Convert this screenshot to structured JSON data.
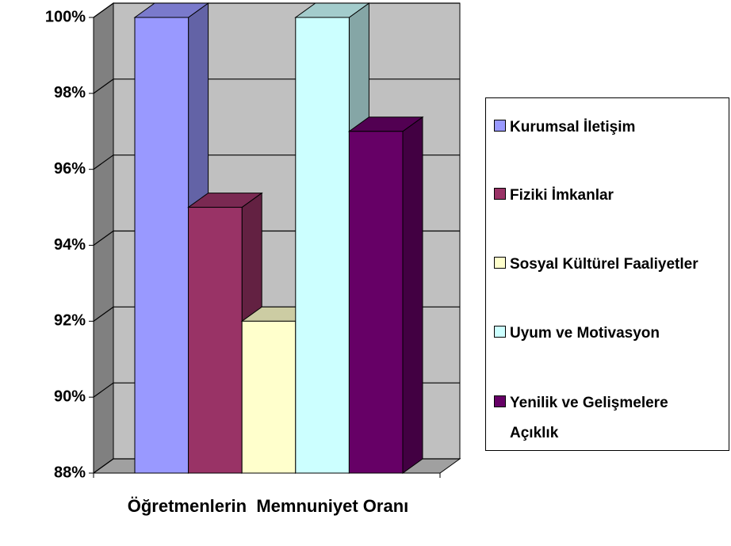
{
  "chart_data": {
    "type": "bar3d",
    "categories": [
      "Öğretmenlerin  Memnuniyet Oranı"
    ],
    "series": [
      {
        "name": "Kurumsal İletişim",
        "color": "#9999ff",
        "values": [
          100
        ]
      },
      {
        "name": "Fiziki İmkanlar",
        "color": "#993366",
        "values": [
          95
        ]
      },
      {
        "name": "Sosyal Kültürel Faaliyetler",
        "color": "#ffffcc",
        "values": [
          92
        ]
      },
      {
        "name": "Uyum ve Motivasyon",
        "color": "#ccffff",
        "values": [
          100
        ]
      },
      {
        "name": "Yenilik ve Gelişmelere Açıklık",
        "color": "#660066",
        "values": [
          97
        ]
      }
    ],
    "ylim": [
      88,
      100
    ],
    "yticks": [
      {
        "value": 88,
        "label": "88%"
      },
      {
        "value": 90,
        "label": "90%"
      },
      {
        "value": 92,
        "label": "92%"
      },
      {
        "value": 94,
        "label": "94%"
      },
      {
        "value": 96,
        "label": "96%"
      },
      {
        "value": 98,
        "label": "98%"
      },
      {
        "value": 100,
        "label": "100%"
      }
    ],
    "grid": true,
    "legend": "right"
  }
}
